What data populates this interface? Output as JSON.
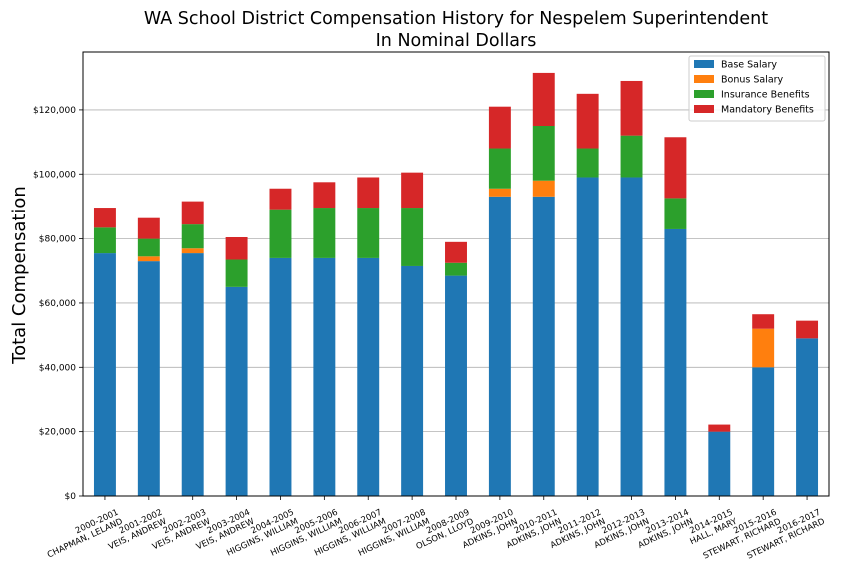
{
  "chart_data": {
    "type": "bar",
    "stacked": true,
    "title": "WA School District Compensation History for Nespelem Superintendent",
    "subtitle": "In Nominal Dollars",
    "xlabel": "",
    "ylabel": "Total Compensation",
    "ylim": [
      0,
      138000
    ],
    "yticks": [
      0,
      20000,
      40000,
      60000,
      80000,
      100000,
      120000
    ],
    "ytick_labels": [
      "$0",
      "$20,000",
      "$40,000",
      "$60,000",
      "$80,000",
      "$100,000",
      "$120,000"
    ],
    "grid": "horizontal",
    "legend_position": "top-right",
    "categories": [
      [
        "2000-2001",
        "CHAPMAN, LELAND"
      ],
      [
        "2001-2002",
        "VEIS, ANDREW"
      ],
      [
        "2002-2003",
        "VEIS, ANDREW"
      ],
      [
        "2003-2004",
        "VEIS, ANDREW"
      ],
      [
        "2004-2005",
        "HIGGINS, WILLIAM"
      ],
      [
        "2005-2006",
        "HIGGINS, WILLIAM"
      ],
      [
        "2006-2007",
        "HIGGINS, WILLIAM"
      ],
      [
        "2007-2008",
        "HIGGINS, WILLIAM"
      ],
      [
        "2008-2009",
        "OLSON, LLOYD"
      ],
      [
        "2009-2010",
        "ADKINS, JOHN"
      ],
      [
        "2010-2011",
        "ADKINS, JOHN"
      ],
      [
        "2011-2012",
        "ADKINS, JOHN"
      ],
      [
        "2012-2013",
        "ADKINS, JOHN"
      ],
      [
        "2013-2014",
        "ADKINS, JOHN"
      ],
      [
        "2014-2015",
        "HALL, MARY"
      ],
      [
        "2015-2016",
        "STEWART, RICHARD"
      ],
      [
        "2016-2017",
        "STEWART, RICHARD"
      ]
    ],
    "series": [
      {
        "name": "Base Salary",
        "color": "#1f77b4",
        "values": [
          75500,
          73000,
          75500,
          65000,
          74000,
          74000,
          74000,
          71500,
          68500,
          93000,
          93000,
          99000,
          99000,
          83000,
          20000,
          40000,
          49000
        ]
      },
      {
        "name": "Bonus Salary",
        "color": "#ff7f0e",
        "values": [
          0,
          1500,
          1500,
          0,
          0,
          0,
          0,
          0,
          0,
          2500,
          5000,
          0,
          0,
          0,
          0,
          12000,
          0
        ]
      },
      {
        "name": "Insurance Benefits",
        "color": "#2ca02c",
        "values": [
          8000,
          5500,
          7500,
          8500,
          15000,
          15500,
          15500,
          18000,
          4000,
          12500,
          17000,
          9000,
          13000,
          9500,
          0,
          0,
          0
        ]
      },
      {
        "name": "Mandatory Benefits",
        "color": "#d62728",
        "values": [
          6000,
          6500,
          7000,
          7000,
          6500,
          8000,
          9500,
          11000,
          6500,
          13000,
          16500,
          17000,
          17000,
          19000,
          2200,
          4500,
          5500
        ]
      }
    ]
  }
}
